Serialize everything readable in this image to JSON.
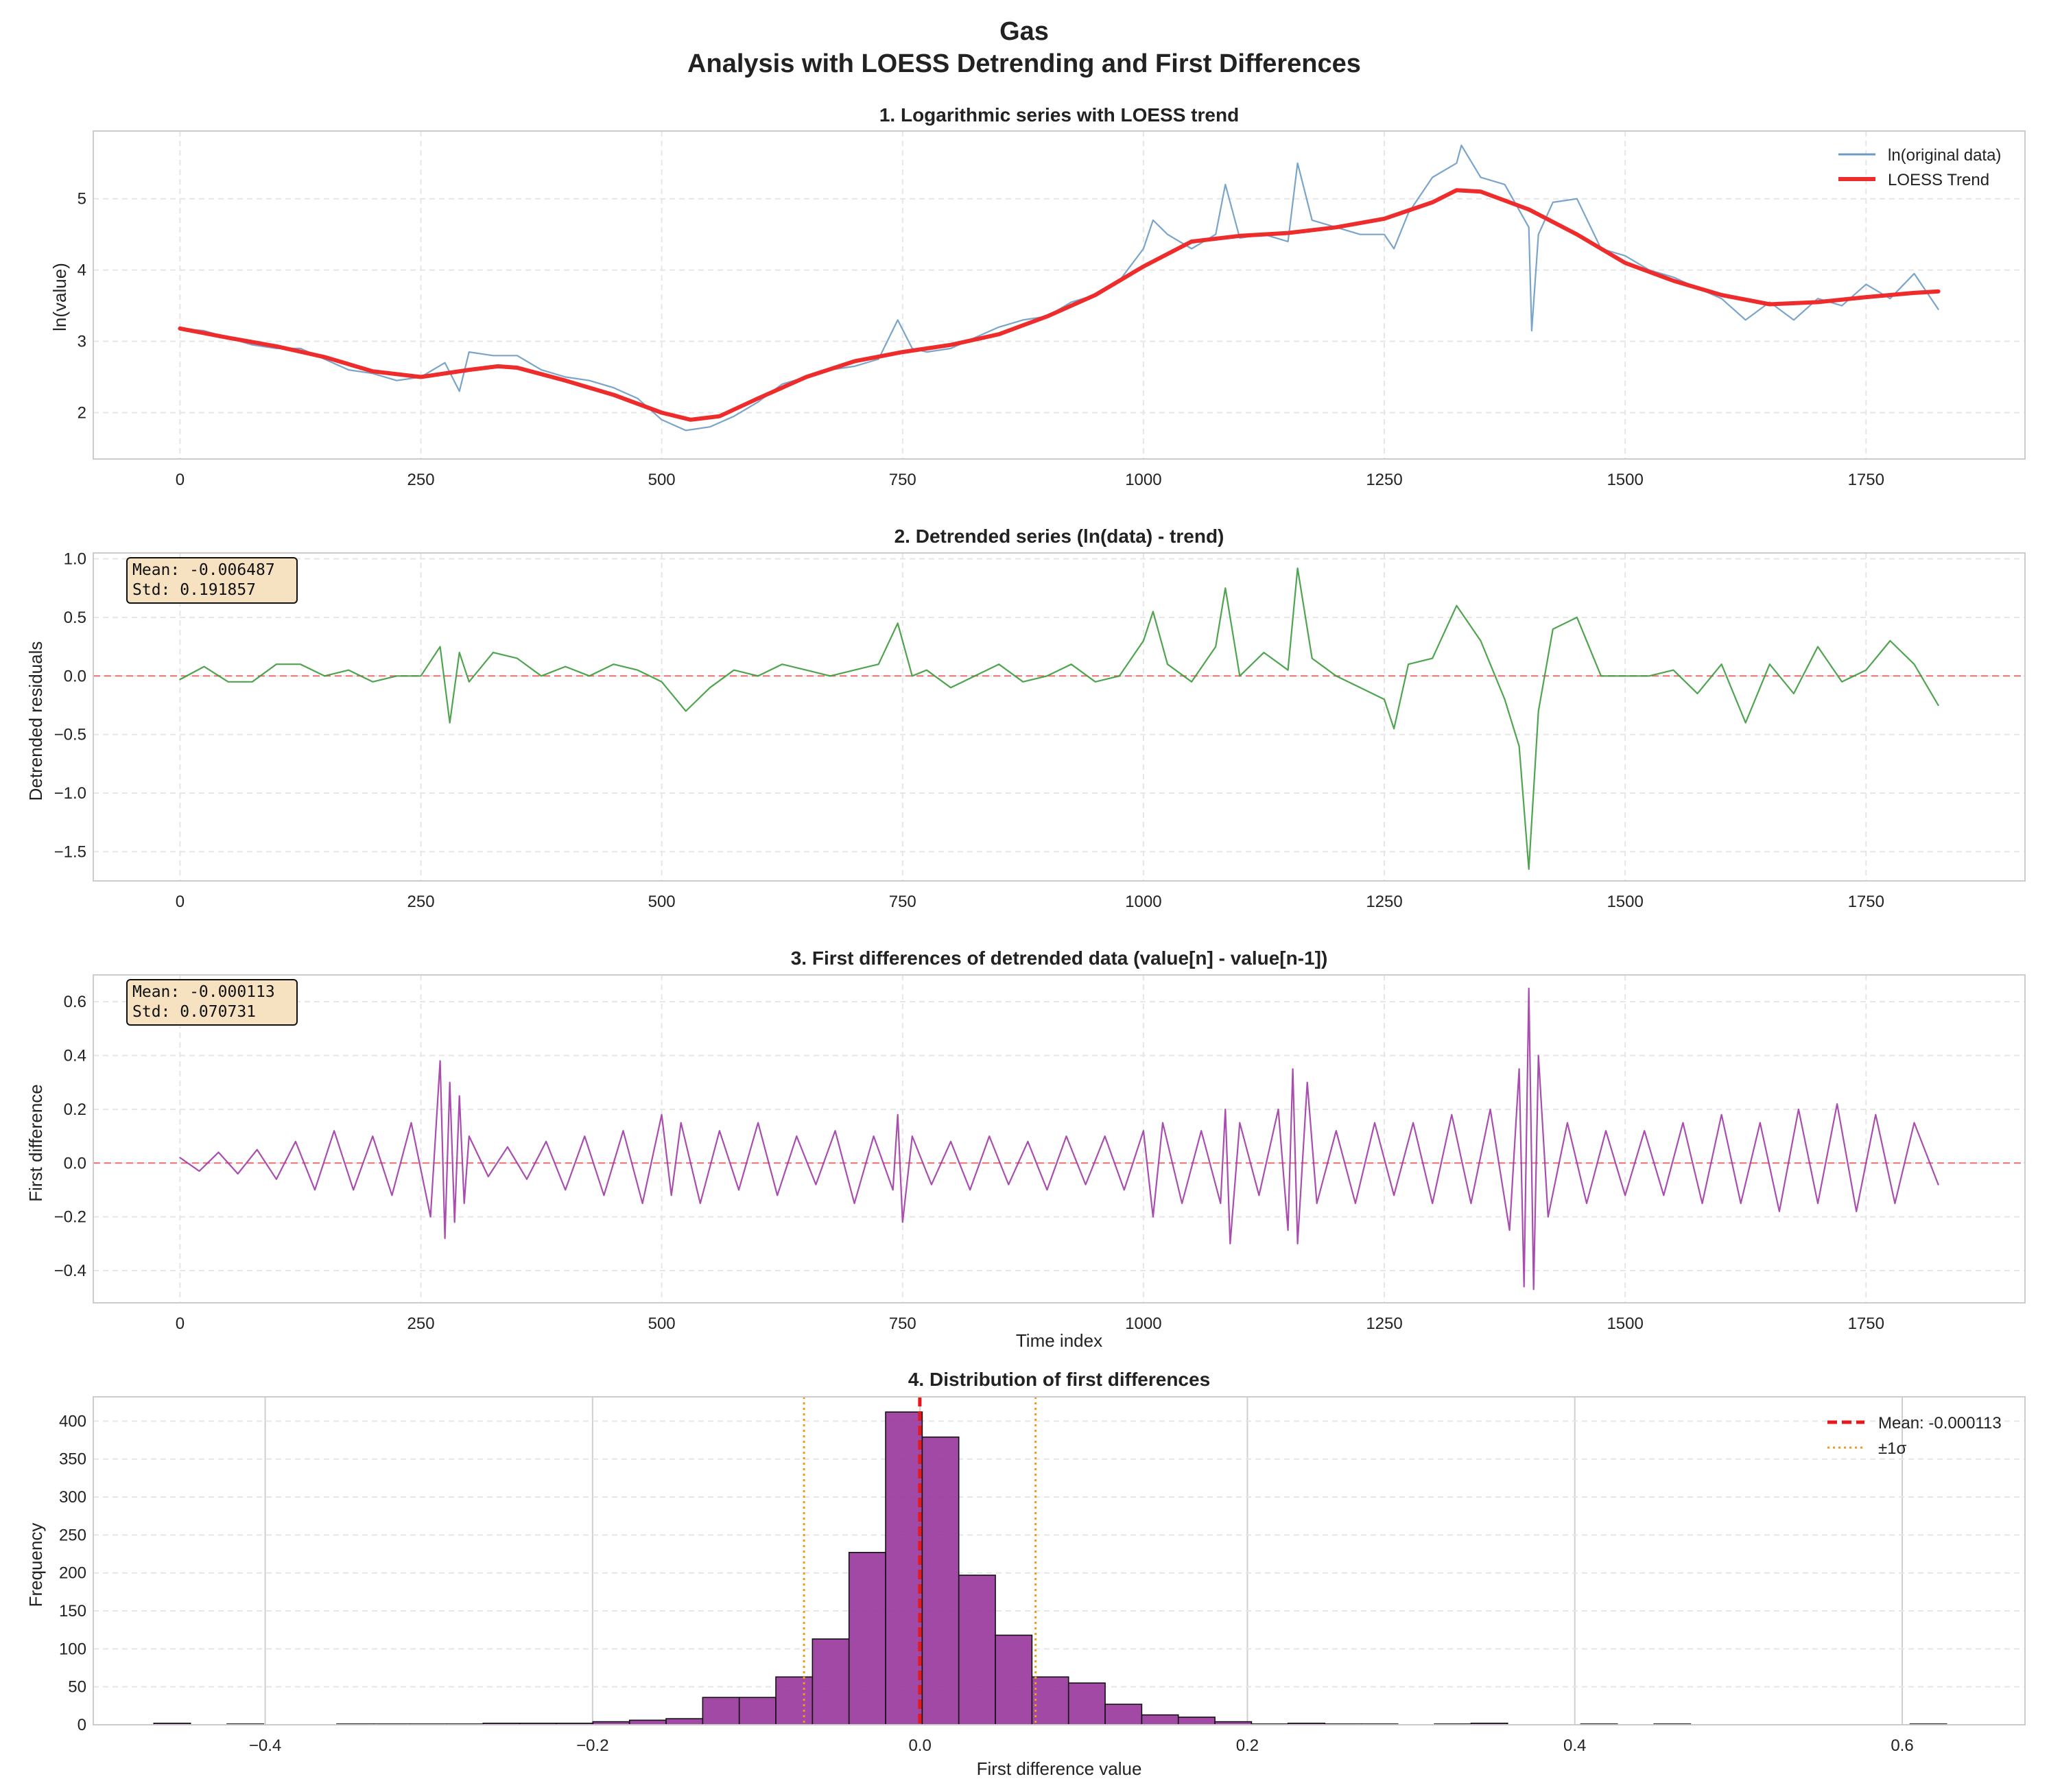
{
  "figure": {
    "title_line1": "Gas",
    "title_line2": "Analysis with LOESS Detrending and First Differences"
  },
  "chart_data": [
    {
      "type": "line",
      "title": "1. Logarithmic series with LOESS trend",
      "xlabel": "",
      "ylabel": "ln(value)",
      "xlim": [
        -90,
        1915
      ],
      "ylim": [
        1.35,
        5.95
      ],
      "xticks": [
        0,
        250,
        500,
        750,
        1000,
        1250,
        1500,
        1750
      ],
      "yticks": [
        2,
        3,
        4,
        5
      ],
      "grid": true,
      "legend": "top-right",
      "n_points": 1826,
      "series": [
        {
          "name": "ln(original data)",
          "color": "#6b9ac4",
          "style": "thin",
          "x": [
            0,
            25,
            50,
            75,
            100,
            125,
            150,
            175,
            200,
            225,
            250,
            275,
            290,
            300,
            325,
            350,
            375,
            400,
            425,
            450,
            475,
            500,
            525,
            550,
            575,
            600,
            625,
            650,
            675,
            700,
            725,
            745,
            760,
            775,
            800,
            825,
            850,
            875,
            900,
            925,
            950,
            975,
            1000,
            1010,
            1025,
            1050,
            1075,
            1085,
            1100,
            1125,
            1150,
            1160,
            1175,
            1200,
            1225,
            1250,
            1260,
            1275,
            1300,
            1325,
            1330,
            1350,
            1375,
            1400,
            1403,
            1410,
            1425,
            1450,
            1475,
            1500,
            1525,
            1550,
            1575,
            1600,
            1625,
            1650,
            1675,
            1700,
            1725,
            1750,
            1775,
            1800,
            1825
          ],
          "y": [
            3.18,
            3.15,
            3.05,
            2.95,
            2.9,
            2.9,
            2.75,
            2.6,
            2.55,
            2.45,
            2.5,
            2.7,
            2.3,
            2.85,
            2.8,
            2.8,
            2.6,
            2.5,
            2.45,
            2.35,
            2.2,
            1.9,
            1.75,
            1.8,
            1.95,
            2.15,
            2.4,
            2.5,
            2.6,
            2.65,
            2.75,
            3.3,
            2.9,
            2.85,
            2.9,
            3.05,
            3.2,
            3.3,
            3.35,
            3.55,
            3.65,
            3.85,
            4.3,
            4.7,
            4.5,
            4.3,
            4.5,
            5.2,
            4.45,
            4.5,
            4.4,
            5.5,
            4.7,
            4.6,
            4.5,
            4.5,
            4.3,
            4.8,
            5.3,
            5.5,
            5.75,
            5.3,
            5.2,
            4.6,
            3.15,
            4.5,
            4.95,
            5.0,
            4.3,
            4.2,
            4.0,
            3.9,
            3.75,
            3.6,
            3.3,
            3.55,
            3.3,
            3.6,
            3.5,
            3.8,
            3.6,
            3.95,
            3.45
          ]
        },
        {
          "name": "LOESS Trend",
          "color": "#ee2c2c",
          "style": "thick",
          "x": [
            0,
            50,
            100,
            150,
            200,
            250,
            300,
            330,
            350,
            400,
            450,
            500,
            530,
            560,
            600,
            650,
            700,
            750,
            800,
            850,
            900,
            950,
            1000,
            1050,
            1100,
            1150,
            1200,
            1250,
            1300,
            1325,
            1350,
            1400,
            1450,
            1500,
            1550,
            1600,
            1650,
            1700,
            1750,
            1800,
            1825
          ],
          "y": [
            3.18,
            3.05,
            2.93,
            2.78,
            2.58,
            2.5,
            2.6,
            2.65,
            2.63,
            2.45,
            2.25,
            2.0,
            1.9,
            1.95,
            2.2,
            2.5,
            2.72,
            2.85,
            2.95,
            3.1,
            3.35,
            3.65,
            4.05,
            4.4,
            4.48,
            4.52,
            4.6,
            4.72,
            4.95,
            5.12,
            5.1,
            4.85,
            4.5,
            4.1,
            3.85,
            3.65,
            3.52,
            3.55,
            3.62,
            3.68,
            3.7
          ]
        }
      ]
    },
    {
      "type": "line",
      "title": "2. Detrended series (ln(data) - trend)",
      "xlabel": "",
      "ylabel": "Detrended residuals",
      "xlim": [
        -90,
        1915
      ],
      "ylim": [
        -1.75,
        1.05
      ],
      "xticks": [
        0,
        250,
        500,
        750,
        1000,
        1250,
        1500,
        1750
      ],
      "yticks": [
        -1.5,
        -1.0,
        -0.5,
        0.0,
        0.5,
        1.0
      ],
      "grid": true,
      "annotation": {
        "mean_text": "Mean: -0.006487",
        "std_text": "Std: 0.191857"
      },
      "series": [
        {
          "name": "",
          "color": "#3c9a3c",
          "x": [
            0,
            25,
            50,
            75,
            100,
            125,
            150,
            175,
            200,
            225,
            250,
            270,
            280,
            290,
            300,
            325,
            350,
            375,
            400,
            425,
            450,
            475,
            500,
            525,
            550,
            575,
            600,
            625,
            650,
            675,
            700,
            725,
            745,
            760,
            775,
            800,
            825,
            850,
            875,
            900,
            925,
            950,
            975,
            1000,
            1010,
            1025,
            1050,
            1075,
            1085,
            1100,
            1125,
            1150,
            1160,
            1175,
            1200,
            1225,
            1250,
            1260,
            1275,
            1300,
            1325,
            1350,
            1375,
            1390,
            1400,
            1410,
            1425,
            1450,
            1475,
            1500,
            1525,
            1550,
            1575,
            1600,
            1625,
            1650,
            1675,
            1700,
            1725,
            1750,
            1775,
            1800,
            1825
          ],
          "y": [
            -0.03,
            0.08,
            -0.05,
            -0.05,
            0.1,
            0.1,
            0.0,
            0.05,
            -0.05,
            0.0,
            0.0,
            0.25,
            -0.4,
            0.2,
            -0.05,
            0.2,
            0.15,
            0.0,
            0.08,
            0.0,
            0.1,
            0.05,
            -0.05,
            -0.3,
            -0.1,
            0.05,
            0.0,
            0.1,
            0.05,
            0.0,
            0.05,
            0.1,
            0.45,
            0.0,
            0.05,
            -0.1,
            0.0,
            0.1,
            -0.05,
            0.0,
            0.1,
            -0.05,
            0.0,
            0.3,
            0.55,
            0.1,
            -0.05,
            0.25,
            0.75,
            0.0,
            0.2,
            0.05,
            0.92,
            0.15,
            0.0,
            -0.1,
            -0.2,
            -0.45,
            0.1,
            0.15,
            0.6,
            0.3,
            -0.2,
            -0.6,
            -1.65,
            -0.3,
            0.4,
            0.5,
            0.0,
            0.0,
            0.0,
            0.05,
            -0.15,
            0.1,
            -0.4,
            0.1,
            -0.15,
            0.25,
            -0.05,
            0.05,
            0.3,
            0.1,
            -0.25
          ]
        }
      ],
      "reference_line": {
        "y": 0.0,
        "color": "#ef6e6e",
        "style": "dashed"
      }
    },
    {
      "type": "line",
      "title": "3. First differences of detrended data (value[n] - value[n-1])",
      "xlabel": "Time index",
      "ylabel": "First difference",
      "xlim": [
        -90,
        1915
      ],
      "ylim": [
        -0.52,
        0.7
      ],
      "xticks": [
        0,
        250,
        500,
        750,
        1000,
        1250,
        1500,
        1750
      ],
      "yticks": [
        -0.4,
        -0.2,
        0.0,
        0.2,
        0.4,
        0.6
      ],
      "grid": true,
      "annotation": {
        "mean_text": "Mean: -0.000113",
        "std_text": "Std: 0.070731"
      },
      "series": [
        {
          "name": "",
          "color": "#a03aa6",
          "x": [
            0,
            20,
            40,
            60,
            80,
            100,
            120,
            140,
            160,
            180,
            200,
            220,
            240,
            260,
            270,
            275,
            280,
            285,
            290,
            295,
            300,
            320,
            340,
            360,
            380,
            400,
            420,
            440,
            460,
            480,
            500,
            510,
            520,
            540,
            560,
            580,
            600,
            620,
            640,
            660,
            680,
            700,
            720,
            740,
            745,
            750,
            760,
            780,
            800,
            820,
            840,
            860,
            880,
            900,
            920,
            940,
            960,
            980,
            1000,
            1010,
            1020,
            1040,
            1060,
            1080,
            1085,
            1090,
            1100,
            1120,
            1140,
            1150,
            1155,
            1160,
            1170,
            1180,
            1200,
            1220,
            1240,
            1260,
            1280,
            1300,
            1320,
            1340,
            1360,
            1380,
            1390,
            1395,
            1400,
            1405,
            1410,
            1420,
            1440,
            1460,
            1480,
            1500,
            1520,
            1540,
            1560,
            1580,
            1600,
            1620,
            1640,
            1660,
            1680,
            1700,
            1720,
            1740,
            1760,
            1780,
            1800,
            1825
          ],
          "y": [
            0.02,
            -0.03,
            0.04,
            -0.04,
            0.05,
            -0.06,
            0.08,
            -0.1,
            0.12,
            -0.1,
            0.1,
            -0.12,
            0.15,
            -0.2,
            0.38,
            -0.28,
            0.3,
            -0.22,
            0.25,
            -0.15,
            0.1,
            -0.05,
            0.06,
            -0.06,
            0.08,
            -0.1,
            0.1,
            -0.12,
            0.12,
            -0.15,
            0.18,
            -0.12,
            0.15,
            -0.15,
            0.12,
            -0.1,
            0.15,
            -0.12,
            0.1,
            -0.08,
            0.12,
            -0.15,
            0.1,
            -0.1,
            0.18,
            -0.22,
            0.1,
            -0.08,
            0.08,
            -0.1,
            0.1,
            -0.08,
            0.08,
            -0.1,
            0.1,
            -0.08,
            0.1,
            -0.1,
            0.12,
            -0.2,
            0.15,
            -0.15,
            0.12,
            -0.15,
            0.2,
            -0.3,
            0.15,
            -0.12,
            0.2,
            -0.25,
            0.35,
            -0.3,
            0.3,
            -0.15,
            0.12,
            -0.15,
            0.15,
            -0.12,
            0.15,
            -0.15,
            0.18,
            -0.15,
            0.2,
            -0.25,
            0.35,
            -0.46,
            0.65,
            -0.47,
            0.4,
            -0.2,
            0.15,
            -0.15,
            0.12,
            -0.12,
            0.12,
            -0.12,
            0.15,
            -0.15,
            0.18,
            -0.15,
            0.15,
            -0.18,
            0.2,
            -0.15,
            0.22,
            -0.18,
            0.18,
            -0.15,
            0.15,
            -0.08
          ]
        }
      ],
      "reference_line": {
        "y": 0.0,
        "color": "#ef6e6e",
        "style": "dashed"
      }
    },
    {
      "type": "bar",
      "subtype": "histogram",
      "title": "4. Distribution of first differences",
      "xlabel": "First difference value",
      "ylabel": "Frequency",
      "xlim": [
        -0.505,
        0.675
      ],
      "ylim": [
        0,
        432
      ],
      "xticks": [
        -0.4,
        -0.2,
        0.0,
        0.2,
        0.4,
        0.6
      ],
      "xtick_labels": [
        "−0.4",
        "−0.2",
        "0.0",
        "0.2",
        "0.4",
        "0.6"
      ],
      "yticks": [
        0,
        50,
        100,
        150,
        200,
        250,
        300,
        350,
        400
      ],
      "grid": true,
      "legend": "top-right",
      "bar_color": "#9a3a9e",
      "bin_edges_start": -0.468,
      "bin_width": 0.02235,
      "values": [
        2,
        0,
        1,
        0,
        0,
        1,
        1,
        1,
        1,
        2,
        2,
        2,
        4,
        6,
        8,
        36,
        36,
        63,
        113,
        227,
        412,
        379,
        197,
        118,
        63,
        55,
        27,
        13,
        10,
        4,
        1,
        2,
        1,
        1,
        0,
        1,
        2,
        0,
        0,
        1,
        0,
        1,
        0,
        0,
        0,
        0,
        0,
        0,
        1
      ],
      "mean": -0.000113,
      "std": 0.070731,
      "legend_entries": [
        {
          "label": "Mean: -0.000113",
          "color": "#e8171b",
          "style": "dashed"
        },
        {
          "label": "±1σ",
          "color": "#f29a1f",
          "style": "dotted"
        }
      ]
    }
  ]
}
